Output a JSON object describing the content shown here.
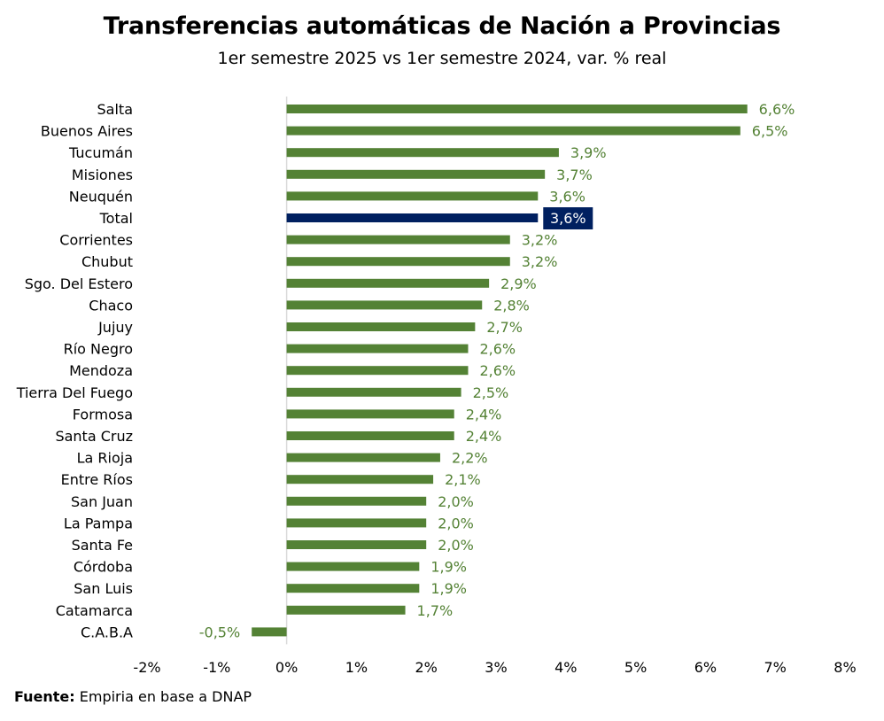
{
  "chart_data": {
    "type": "bar",
    "orientation": "horizontal",
    "title": "Transferencias automáticas de Nación a Provincias",
    "subtitle": "1er semestre 2025 vs 1er semestre 2024, var. % real",
    "categories": [
      "Salta",
      "Buenos Aires",
      "Tucumán",
      "Misiones",
      "Neuquén",
      "Total",
      "Corrientes",
      "Chubut",
      "Sgo. Del Estero",
      "Chaco",
      "Jujuy",
      "Río Negro",
      "Mendoza",
      "Tierra Del Fuego",
      "Formosa",
      "Santa Cruz",
      "La Rioja",
      "Entre Ríos",
      "San Juan",
      "La Pampa",
      "Santa Fe",
      "Córdoba",
      "San Luis",
      "Catamarca",
      "C.A.B.A"
    ],
    "values": [
      6.6,
      6.5,
      3.9,
      3.7,
      3.6,
      3.6,
      3.2,
      3.2,
      2.9,
      2.8,
      2.7,
      2.6,
      2.6,
      2.5,
      2.4,
      2.4,
      2.2,
      2.1,
      2.0,
      2.0,
      2.0,
      1.9,
      1.9,
      1.7,
      -0.5
    ],
    "value_labels": [
      "6,6%",
      "6,5%",
      "3,9%",
      "3,7%",
      "3,6%",
      "3,6%",
      "3,2%",
      "3,2%",
      "2,9%",
      "2,8%",
      "2,7%",
      "2,6%",
      "2,6%",
      "2,5%",
      "2,4%",
      "2,4%",
      "2,2%",
      "2,1%",
      "2,0%",
      "2,0%",
      "2,0%",
      "1,9%",
      "1,9%",
      "1,7%",
      "-0,5%"
    ],
    "highlight_category": "Total",
    "xlim": [
      -2,
      8
    ],
    "x_ticks": [
      -2,
      -1,
      0,
      1,
      2,
      3,
      4,
      5,
      6,
      7,
      8
    ],
    "x_tick_labels": [
      "-2%",
      "-1%",
      "0%",
      "1%",
      "2%",
      "3%",
      "4%",
      "5%",
      "6%",
      "7%",
      "8%"
    ],
    "grid": false,
    "legend": "none",
    "colors": {
      "bar": "#548235",
      "highlight_bar": "#002060",
      "highlight_label_bg": "#002060",
      "highlight_label_text": "#ffffff",
      "value_label": "#548235",
      "zero_line": "#d9d9d9"
    }
  },
  "source": {
    "label": "Fuente:",
    "text": " Empiria en base a DNAP"
  }
}
